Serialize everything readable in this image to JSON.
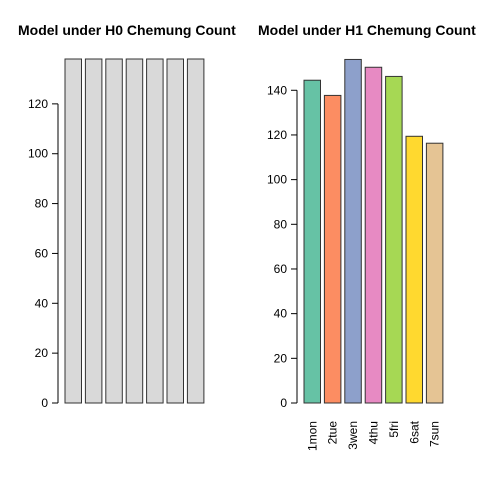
{
  "chart_data": [
    {
      "type": "bar",
      "title": "Model under H0 Chemung Count",
      "categories": [
        null,
        null,
        null,
        null,
        null,
        null,
        null
      ],
      "values": [
        138,
        138,
        138,
        138,
        138,
        138,
        138
      ],
      "color": "#d9d9d9",
      "ylim": [
        0,
        138
      ],
      "yticks": [
        0,
        20,
        40,
        60,
        80,
        100,
        120
      ]
    },
    {
      "type": "bar",
      "title": "Model under H1 Chemung Count",
      "categories": [
        "1mon",
        "2tue",
        "3wen",
        "4thu",
        "5fri",
        "6sat",
        "7sun"
      ],
      "values": [
        144.5,
        137.7,
        153.8,
        150.3,
        146.2,
        119.4,
        116.3
      ],
      "colors": [
        "#66c2a5",
        "#fc8d62",
        "#8da0cb",
        "#e78ac3",
        "#a6d854",
        "#ffd92f",
        "#e5c494"
      ],
      "ylim": [
        0,
        154
      ],
      "yticks": [
        0,
        20,
        40,
        60,
        80,
        100,
        120,
        140
      ]
    }
  ]
}
